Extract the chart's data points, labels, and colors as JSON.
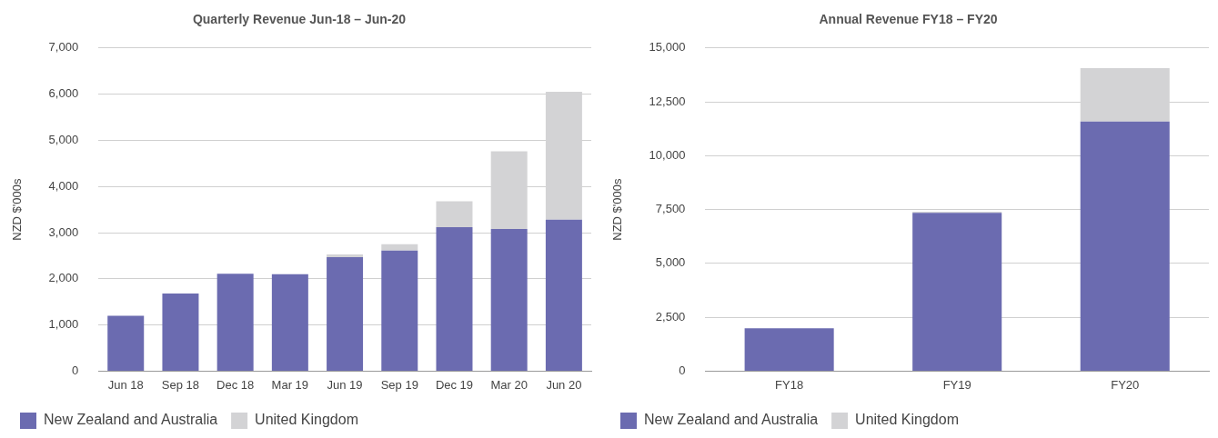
{
  "chart_data": [
    {
      "type": "bar",
      "title": "Quarterly Revenue Jun-18 – Jun-20",
      "ylabel": "NZD $'000s",
      "stacked": true,
      "grid": "y",
      "legend": "bottom left",
      "categories": [
        "Jun 18",
        "Sep 18",
        "Dec 18",
        "Mar 19",
        "Jun 19",
        "Sep 19",
        "Dec 19",
        "Mar 20",
        "Jun 20"
      ],
      "series": [
        {
          "name": "New Zealand and Australia",
          "color": "#6b6bb0",
          "values": [
            1200,
            1680,
            2110,
            2100,
            2470,
            2610,
            3120,
            3080,
            3280
          ]
        },
        {
          "name": "United Kingdom",
          "color": "#d3d3d5",
          "values": [
            0,
            0,
            0,
            0,
            60,
            140,
            560,
            1680,
            2770
          ]
        }
      ],
      "ylim": [
        0,
        7000
      ],
      "yticks": [
        0,
        {
          "value": 1000,
          "label": "1,000"
        },
        {
          "value": 2000,
          "label": "2,000"
        },
        {
          "value": 3000,
          "label": "3,000"
        },
        {
          "value": 4000,
          "label": "4,000"
        },
        {
          "value": 5000,
          "label": "5,000"
        },
        {
          "value": 6000,
          "label": "6,000"
        },
        {
          "value": 7000,
          "label": "7,000"
        }
      ]
    },
    {
      "type": "bar",
      "title": "Annual Revenue FY18 – FY20",
      "ylabel": "NZD $'000s",
      "stacked": true,
      "grid": "y",
      "legend": "bottom left",
      "categories": [
        "FY18",
        "FY19",
        "FY20"
      ],
      "series": [
        {
          "name": "New Zealand and Australia",
          "color": "#6b6bb0",
          "values": [
            1990,
            7350,
            11590
          ]
        },
        {
          "name": "United Kingdom",
          "color": "#d3d3d5",
          "values": [
            0,
            50,
            2470
          ]
        }
      ],
      "ylim": [
        0,
        15000
      ],
      "yticks": [
        0,
        {
          "value": 2500,
          "label": "2,500"
        },
        {
          "value": 5000,
          "label": "5,000"
        },
        {
          "value": 7500,
          "label": "7,500"
        },
        {
          "value": 10000,
          "label": "10,000"
        },
        {
          "value": 12500,
          "label": "12,500"
        },
        {
          "value": 15000,
          "label": "15,000"
        }
      ]
    }
  ]
}
